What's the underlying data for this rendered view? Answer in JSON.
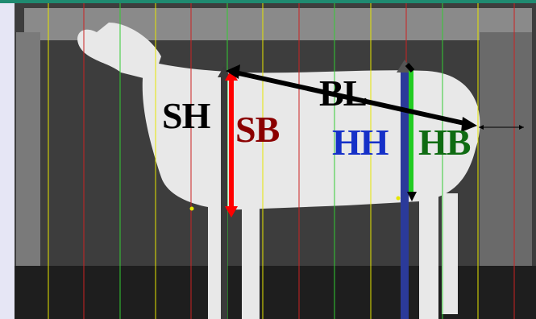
{
  "labels": {
    "sh": "SH",
    "sb": "SB",
    "bl": "BL",
    "hh": "HH",
    "hb": "HB"
  },
  "colors": {
    "sh": "#000000",
    "sb": "#8b0000",
    "sb_arrow": "#ff0000",
    "bl": "#000000",
    "hh": "#1530c8",
    "hh_bar": "#2b3a9a",
    "hb": "#0f6b12",
    "hb_arrow": "#22cc22",
    "grid_yellow": "#e6e600",
    "grid_red": "#cc2222",
    "grid_green": "#33cc33"
  },
  "grid": {
    "line_colors": [
      "yellow",
      "red",
      "green"
    ]
  }
}
